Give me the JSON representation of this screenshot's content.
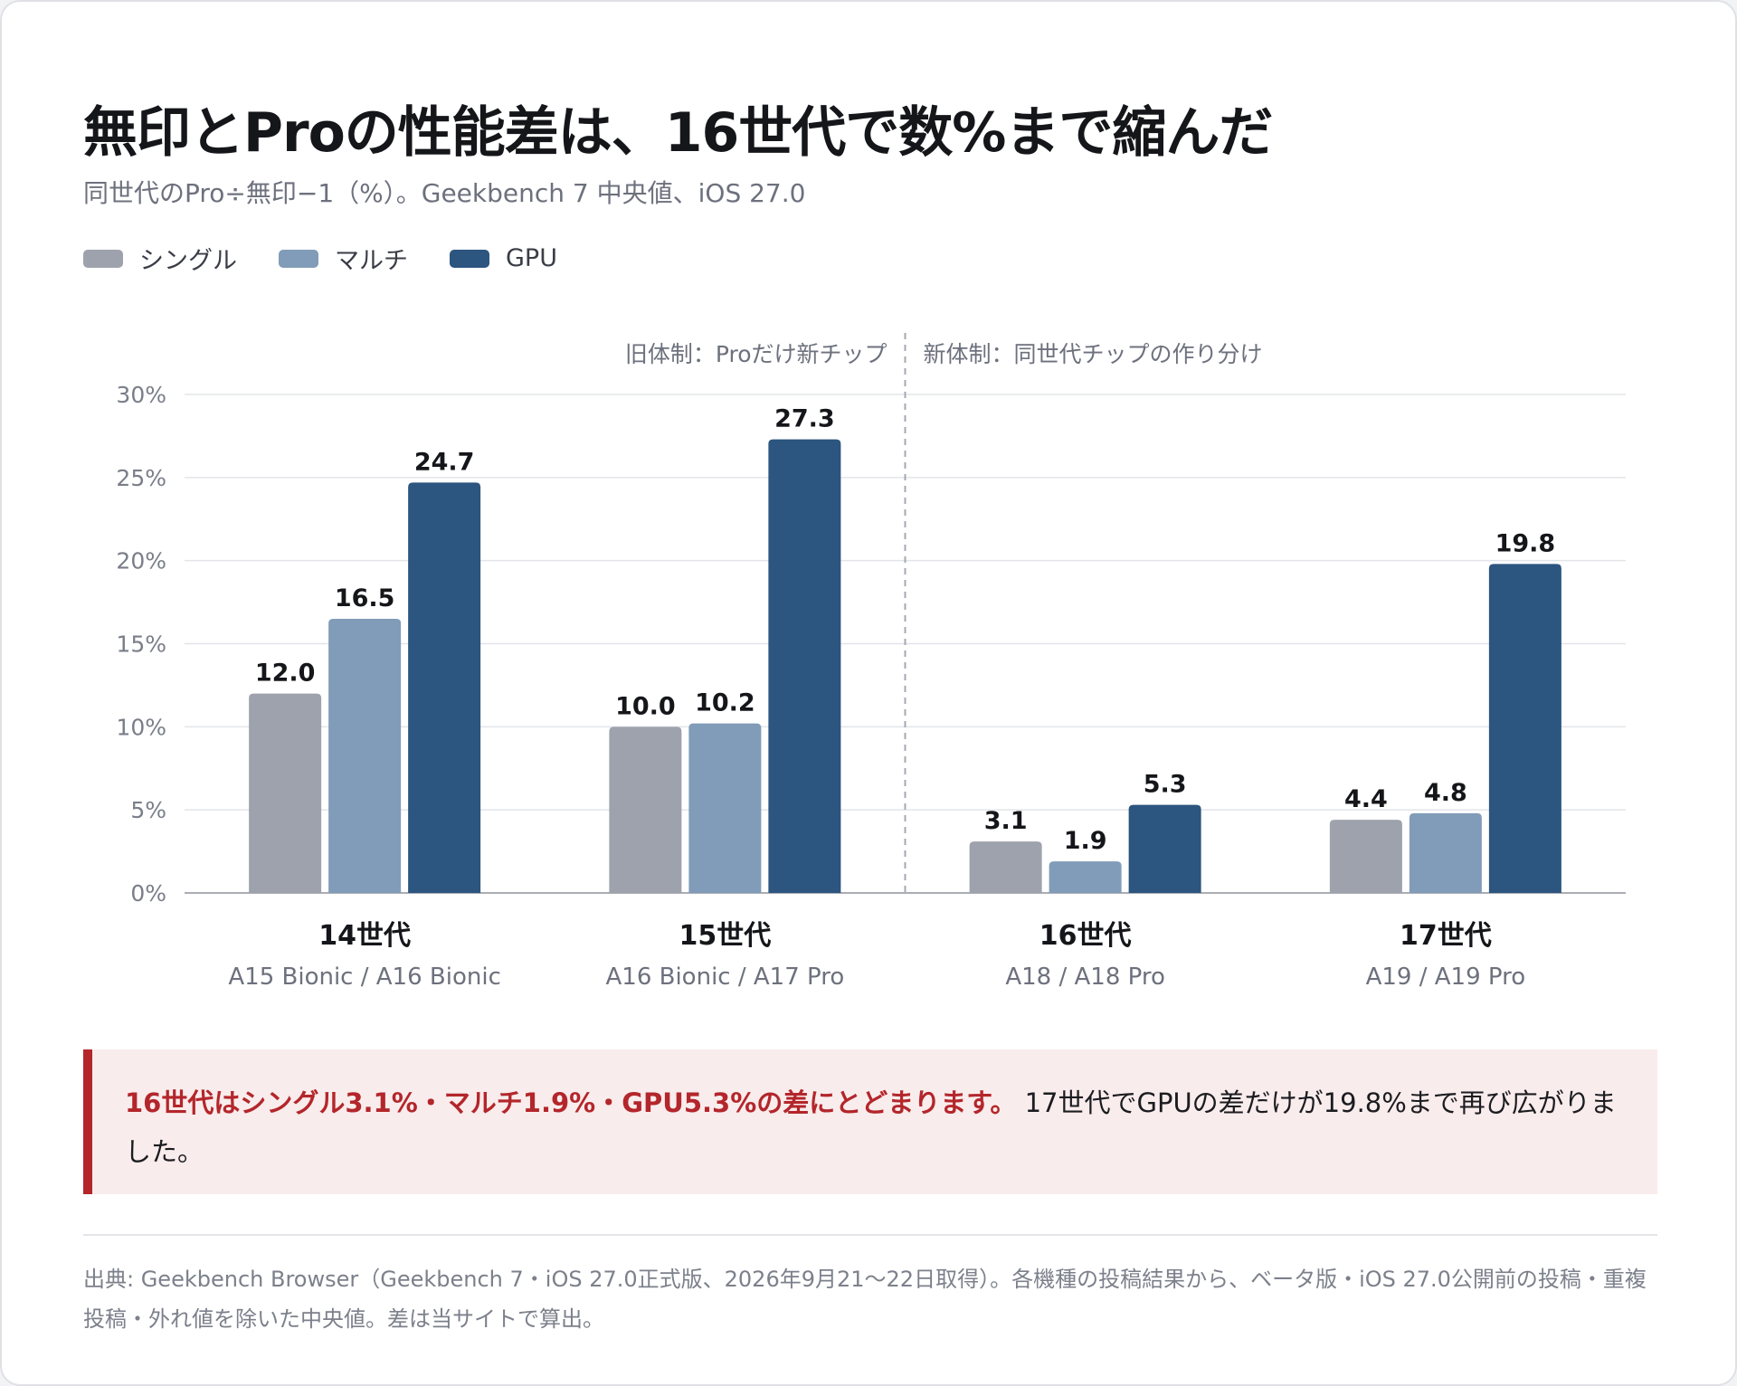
{
  "title": "無印とProの性能差は、16世代で数%まで縮んだ",
  "subtitle": "同世代のPro÷無印−1（%）。Geekbench 7 中央値、iOS 27.0",
  "colors": {
    "single": "#9ea2ad",
    "multi": "#819cb8",
    "gpu": "#2c557f",
    "accent": "#b3262b"
  },
  "chart_data": {
    "type": "bar",
    "categories": [
      "14世代",
      "15世代",
      "16世代",
      "17世代"
    ],
    "category_sublabels": [
      "A15 Bionic / A16 Bionic",
      "A16 Bionic / A17 Pro",
      "A18 / A18 Pro",
      "A19 / A19 Pro"
    ],
    "series": [
      {
        "name": "シングル",
        "values": [
          12.0,
          10.0,
          3.1,
          4.4
        ],
        "color": "#9ea2ad"
      },
      {
        "name": "マルチ",
        "values": [
          16.5,
          10.2,
          1.9,
          4.8
        ],
        "color": "#819cb8"
      },
      {
        "name": "GPU",
        "values": [
          24.7,
          27.3,
          5.3,
          19.8
        ],
        "color": "#2c557f"
      }
    ],
    "y_ticks": [
      0,
      5,
      10,
      15,
      20,
      25,
      30
    ],
    "y_tick_labels": [
      "0%",
      "5%",
      "10%",
      "15%",
      "20%",
      "25%",
      "30%"
    ],
    "ylim": [
      0,
      30
    ],
    "grid": true,
    "legend_position": "top-left",
    "divider_after_category": 1,
    "region_labels": {
      "left": "旧体制：Proだけ新チップ",
      "right": "新体制：同世代チップの作り分け"
    }
  },
  "callout": {
    "strong": "16世代はシングル3.1%・マルチ1.9%・GPU5.3%の差にとどまります。",
    "rest": " 17世代でGPUの差だけが19.8%まで再び広がりました。"
  },
  "source": "出典: Geekbench Browser（Geekbench 7・iOS 27.0正式版、2026年9月21〜22日取得）。各機種の投稿結果から、ベータ版・iOS 27.0公開前の投稿・重複投稿・外れ値を除いた中央値。差は当サイトで算出。"
}
